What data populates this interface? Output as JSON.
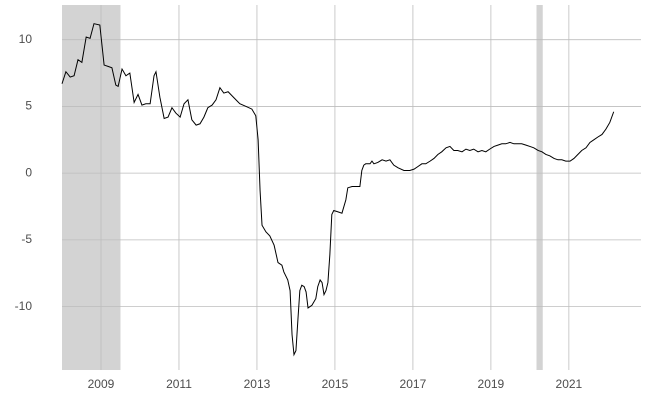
{
  "chart_data": {
    "type": "line",
    "x": [
      2008.0,
      2008.1,
      2008.21,
      2008.31,
      2008.41,
      2008.51,
      2008.62,
      2008.72,
      2008.82,
      2008.97,
      2009.08,
      2009.18,
      2009.28,
      2009.38,
      2009.44,
      2009.54,
      2009.64,
      2009.74,
      2009.85,
      2009.95,
      2010.05,
      2010.15,
      2010.26,
      2010.36,
      2010.41,
      2010.51,
      2010.62,
      2010.72,
      2010.82,
      2010.92,
      2011.03,
      2011.13,
      2011.23,
      2011.33,
      2011.44,
      2011.54,
      2011.64,
      2011.74,
      2011.85,
      2011.95,
      2012.05,
      2012.15,
      2012.26,
      2012.36,
      2012.46,
      2012.56,
      2012.72,
      2012.87,
      2012.97,
      2013.03,
      2013.08,
      2013.13,
      2013.23,
      2013.33,
      2013.44,
      2013.54,
      2013.64,
      2013.69,
      2013.79,
      2013.85,
      2013.9,
      2013.95,
      2014.0,
      2014.05,
      2014.1,
      2014.15,
      2014.21,
      2014.26,
      2014.31,
      2014.41,
      2014.51,
      2014.56,
      2014.62,
      2014.67,
      2014.72,
      2014.77,
      2014.82,
      2014.87,
      2014.92,
      2014.97,
      2015.08,
      2015.18,
      2015.28,
      2015.33,
      2015.44,
      2015.54,
      2015.64,
      2015.69,
      2015.74,
      2015.79,
      2015.9,
      2015.95,
      2016.0,
      2016.1,
      2016.21,
      2016.31,
      2016.41,
      2016.51,
      2016.62,
      2016.77,
      2016.92,
      2017.03,
      2017.13,
      2017.23,
      2017.33,
      2017.44,
      2017.54,
      2017.64,
      2017.74,
      2017.85,
      2017.95,
      2018.05,
      2018.15,
      2018.26,
      2018.36,
      2018.46,
      2018.56,
      2018.67,
      2018.77,
      2018.87,
      2018.97,
      2019.08,
      2019.18,
      2019.28,
      2019.38,
      2019.49,
      2019.59,
      2019.69,
      2019.79,
      2019.9,
      2020.0,
      2020.1,
      2020.21,
      2020.31,
      2020.41,
      2020.51,
      2020.62,
      2020.72,
      2020.82,
      2020.92,
      2021.03,
      2021.13,
      2021.23,
      2021.33,
      2021.44,
      2021.54,
      2021.64,
      2021.74,
      2021.85,
      2021.95,
      2022.05,
      2022.15
    ],
    "values": [
      6.7,
      7.6,
      7.2,
      7.3,
      8.5,
      8.3,
      10.2,
      10.1,
      11.2,
      11.1,
      8.1,
      8.0,
      7.9,
      6.6,
      6.5,
      7.8,
      7.3,
      7.5,
      5.3,
      5.9,
      5.1,
      5.2,
      5.2,
      7.3,
      7.6,
      5.7,
      4.1,
      4.2,
      4.9,
      4.5,
      4.2,
      5.2,
      5.5,
      4.0,
      3.6,
      3.7,
      4.2,
      4.9,
      5.1,
      5.5,
      6.4,
      6.0,
      6.1,
      5.8,
      5.5,
      5.2,
      5.0,
      4.8,
      4.3,
      2.5,
      -1.3,
      -3.9,
      -4.4,
      -4.7,
      -5.4,
      -6.7,
      -6.9,
      -7.4,
      -8.0,
      -8.8,
      -12.1,
      -13.6,
      -13.3,
      -11.0,
      -8.8,
      -8.4,
      -8.5,
      -8.9,
      -10.1,
      -9.9,
      -9.4,
      -8.5,
      -8.0,
      -8.2,
      -9.1,
      -8.8,
      -8.2,
      -6.1,
      -3.1,
      -2.8,
      -2.9,
      -3.0,
      -2.0,
      -1.1,
      -1.0,
      -1.0,
      -1.0,
      0.2,
      0.6,
      0.7,
      0.7,
      0.9,
      0.7,
      0.8,
      1.0,
      0.9,
      1.0,
      0.6,
      0.4,
      0.2,
      0.2,
      0.3,
      0.5,
      0.7,
      0.7,
      0.9,
      1.1,
      1.4,
      1.6,
      1.9,
      2.0,
      1.7,
      1.7,
      1.6,
      1.8,
      1.7,
      1.8,
      1.6,
      1.7,
      1.6,
      1.8,
      2.0,
      2.1,
      2.2,
      2.2,
      2.3,
      2.2,
      2.2,
      2.2,
      2.1,
      2.0,
      1.9,
      1.7,
      1.6,
      1.4,
      1.3,
      1.1,
      1.0,
      1.0,
      0.9,
      0.9,
      1.1,
      1.4,
      1.7,
      1.9,
      2.3,
      2.5,
      2.7,
      2.9,
      3.3,
      3.8,
      4.6
    ],
    "color": "#000000",
    "recessions": [
      [
        2008.0,
        2009.5
      ],
      [
        2020.17,
        2020.33
      ]
    ],
    "recession_color": "#d3d3d3",
    "xlim": [
      2008.0,
      2022.85
    ],
    "xticks": [
      2009,
      2011,
      2013,
      2015,
      2017,
      2019,
      2021
    ],
    "ylim": [
      -14.75,
      12.6
    ],
    "yticks": [
      -10,
      -5,
      0,
      5,
      10
    ],
    "grid": true
  }
}
